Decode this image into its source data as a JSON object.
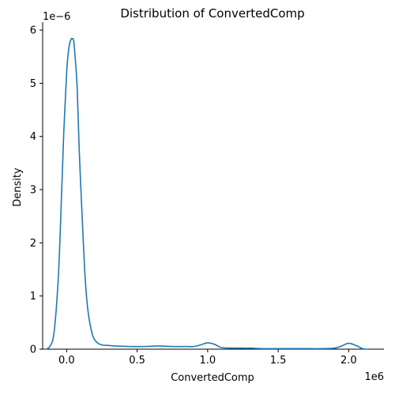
{
  "chart_data": {
    "type": "line",
    "title": "Distribution of ConvertedComp",
    "xlabel": "ConvertedComp",
    "ylabel": "Density",
    "x_offset_label": "1e6",
    "y_offset_label": "1e−6",
    "xlim": [
      -0.17,
      2.25
    ],
    "ylim": [
      0,
      6.15
    ],
    "xticks": [
      0.0,
      0.5,
      1.0,
      1.5,
      2.0
    ],
    "xtick_labels": [
      "0.0",
      "0.5",
      "1.0",
      "1.5",
      "2.0"
    ],
    "yticks": [
      0,
      1,
      2,
      3,
      4,
      5,
      6
    ],
    "ytick_labels": [
      "0",
      "1",
      "2",
      "3",
      "4",
      "5",
      "6"
    ],
    "grid": false,
    "line_color": "#1f77b4",
    "series": [
      {
        "x": [
          -0.15,
          -0.12,
          -0.09,
          -0.06,
          -0.04,
          -0.02,
          0.0,
          0.015,
          0.03,
          0.04,
          0.05,
          0.06,
          0.075,
          0.09,
          0.11,
          0.13,
          0.15,
          0.18,
          0.21,
          0.25,
          0.3,
          0.35,
          0.45,
          0.55,
          0.65,
          0.75,
          0.85,
          0.9,
          0.95,
          1.0,
          1.05,
          1.1,
          1.2,
          1.3,
          1.4,
          1.5,
          1.6,
          1.7,
          1.8,
          1.9,
          1.95,
          2.0,
          2.05,
          2.1,
          2.13
        ],
        "y": [
          0.0,
          0.05,
          0.3,
          1.3,
          2.6,
          4.1,
          5.2,
          5.65,
          5.82,
          5.84,
          5.8,
          5.5,
          4.9,
          3.7,
          2.5,
          1.4,
          0.75,
          0.3,
          0.14,
          0.08,
          0.07,
          0.06,
          0.05,
          0.05,
          0.06,
          0.05,
          0.05,
          0.05,
          0.08,
          0.12,
          0.09,
          0.03,
          0.02,
          0.02,
          0.01,
          0.01,
          0.01,
          0.01,
          0.01,
          0.02,
          0.06,
          0.11,
          0.07,
          0.01,
          0.0
        ]
      }
    ]
  }
}
